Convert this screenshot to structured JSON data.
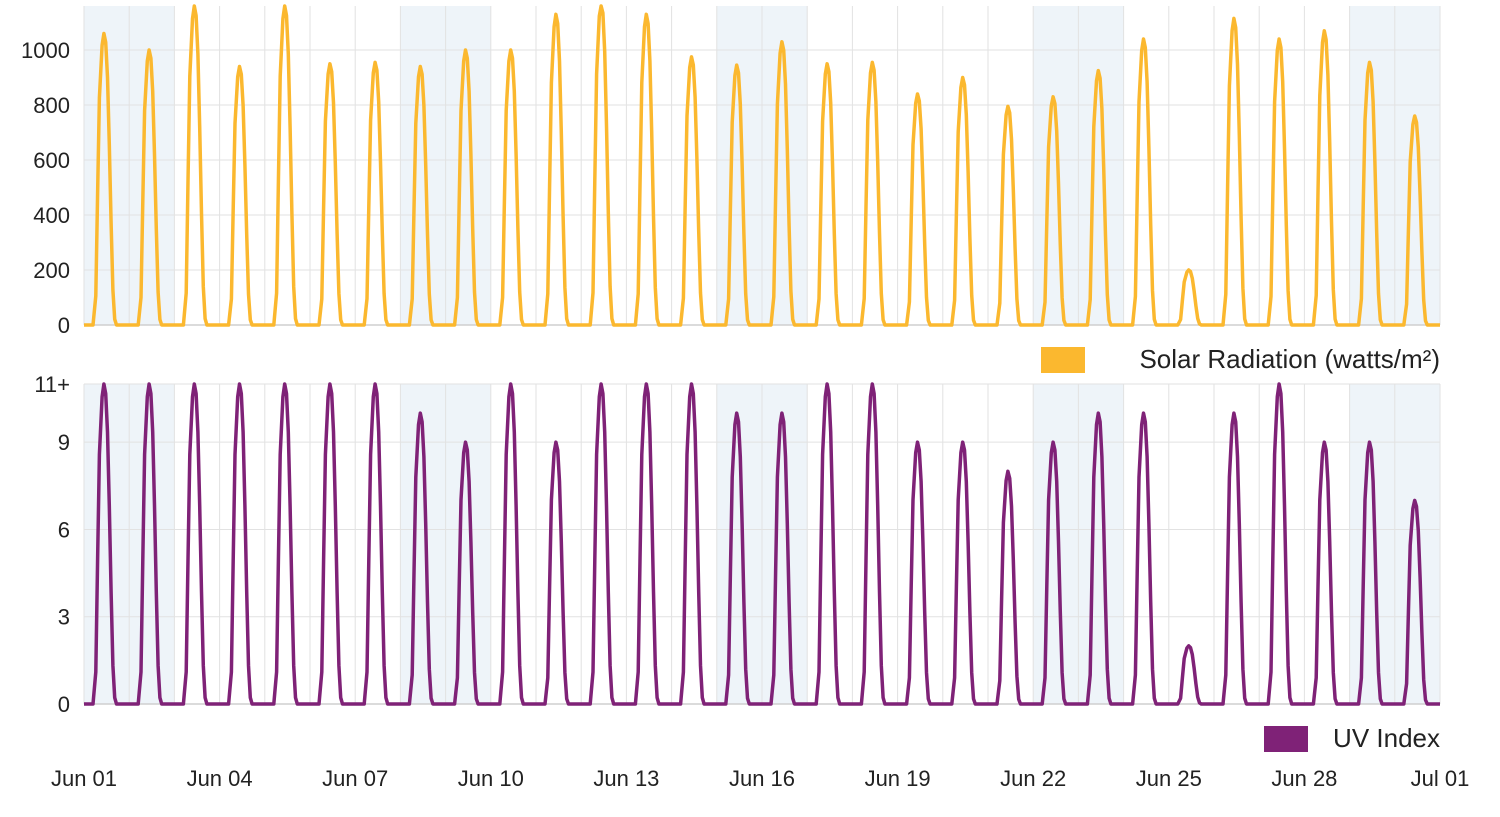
{
  "chart_data": [
    {
      "type": "line",
      "series": [
        {
          "name": "Solar Radiation (watts/m²)",
          "color": "#FBB82F",
          "daily_peaks": [
            1060,
            1000,
            1160,
            940,
            1160,
            950,
            955,
            940,
            1000,
            1000,
            1130,
            1170,
            1130,
            975,
            945,
            1030,
            950,
            955,
            840,
            900,
            795,
            830,
            925,
            1040,
            200,
            1115,
            1040,
            1070,
            955,
            760
          ]
        }
      ],
      "y_ticks": [
        "0",
        "200",
        "400",
        "600",
        "800",
        "1000"
      ],
      "ylim": [
        0,
        1160
      ],
      "grid": true
    },
    {
      "type": "line",
      "series": [
        {
          "name": "UV Index",
          "color": "#7F2277",
          "daily_peaks": [
            11,
            11,
            11,
            11,
            11,
            11,
            11,
            10,
            9,
            11,
            9,
            11,
            11,
            11,
            10,
            10,
            11,
            11,
            9,
            9,
            8,
            9,
            10,
            10,
            2,
            10,
            11,
            9,
            9,
            7
          ]
        }
      ],
      "y_ticks": [
        "0",
        "3",
        "6",
        "9",
        "11+"
      ],
      "ylim": [
        0,
        11
      ],
      "grid": true
    }
  ],
  "x_axis": {
    "start": "2024-06-01",
    "end": "2024-07-01",
    "tick_labels": [
      "Jun 01",
      "Jun 04",
      "Jun 07",
      "Jun 10",
      "Jun 13",
      "Jun 16",
      "Jun 19",
      "Jun 22",
      "Jun 25",
      "Jun 28",
      "Jul 01"
    ]
  },
  "legend": {
    "solar_label": "Solar Radiation (watts/m²)",
    "solar_color": "#FBB82F",
    "uv_label": "UV Index",
    "uv_color": "#7F2277",
    "placement": "bottom-right"
  },
  "colors": {
    "shade": "#EEF4F9",
    "grid": "#E2E2E2",
    "axis": "#CFCFCF"
  }
}
